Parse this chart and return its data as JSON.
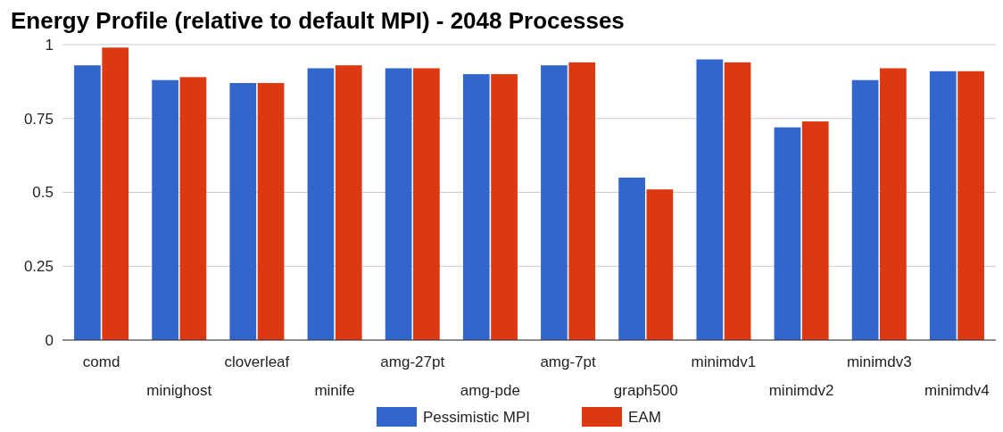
{
  "chart_data": {
    "type": "bar",
    "title": "Energy Profile (relative to default MPI) - 2048 Processes",
    "categories": [
      "comd",
      "minighost",
      "cloverleaf",
      "minife",
      "amg-27pt",
      "amg-pde",
      "amg-7pt",
      "graph500",
      "minimdv1",
      "minimdv2",
      "minimdv3",
      "minimdv4"
    ],
    "series": [
      {
        "name": "Pessimistic MPI",
        "color": "#3366cc",
        "values": [
          0.93,
          0.88,
          0.87,
          0.92,
          0.92,
          0.9,
          0.93,
          0.55,
          0.95,
          0.72,
          0.88,
          0.91
        ]
      },
      {
        "name": "EAM",
        "color": "#dc3912",
        "values": [
          0.99,
          0.89,
          0.87,
          0.93,
          0.92,
          0.9,
          0.94,
          0.51,
          0.94,
          0.74,
          0.92,
          0.91
        ]
      }
    ],
    "ylim": [
      0,
      1
    ],
    "yticks": [
      0,
      0.25,
      0.5,
      0.75,
      1
    ],
    "grid": "y",
    "legend": "bottom"
  }
}
